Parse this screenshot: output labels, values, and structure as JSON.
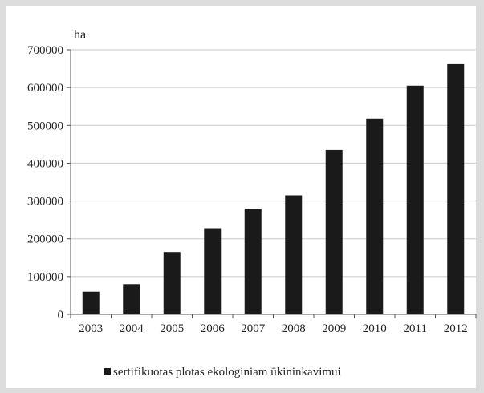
{
  "chart_data": {
    "type": "bar",
    "ylabel": "ha",
    "categories": [
      "2003",
      "2004",
      "2005",
      "2006",
      "2007",
      "2008",
      "2009",
      "2010",
      "2011",
      "2012"
    ],
    "series": [
      {
        "name": "sertifikuotas plotas ekologiniam ūkininkavimui",
        "values": [
          60000,
          80000,
          165000,
          228000,
          280000,
          315000,
          435000,
          518000,
          605000,
          662000
        ],
        "color": "#1a1a1a"
      }
    ],
    "ylim": [
      0,
      700000
    ],
    "yticks": [
      0,
      100000,
      200000,
      300000,
      400000,
      500000,
      600000,
      700000
    ],
    "ytick_labels": [
      "0",
      "100000",
      "200000",
      "300000",
      "400000",
      "500000",
      "600000",
      "700000"
    ],
    "grid": true,
    "legend_position": "bottom"
  }
}
